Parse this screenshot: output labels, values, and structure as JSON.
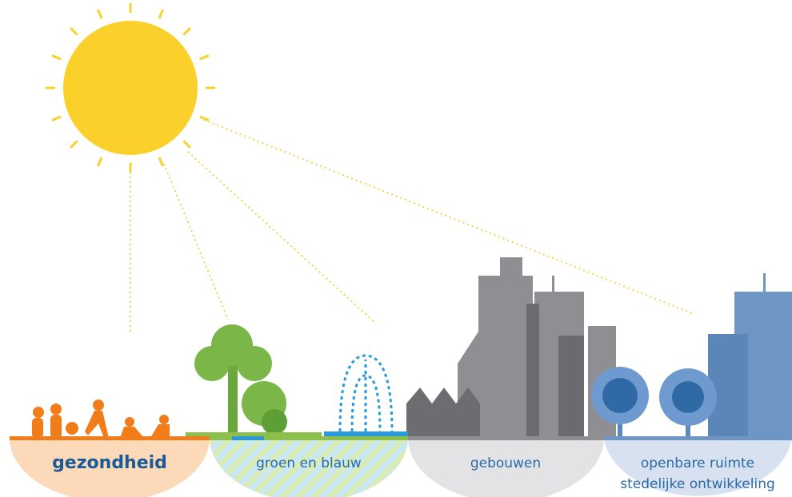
{
  "segments": [
    {
      "lines": [
        "gezondheid"
      ]
    },
    {
      "lines": [
        "groen en blauw"
      ]
    },
    {
      "lines": [
        "gebouwen"
      ]
    },
    {
      "lines": [
        "openbare ruimte",
        "stedelijke ontwikkeling"
      ]
    }
  ]
}
